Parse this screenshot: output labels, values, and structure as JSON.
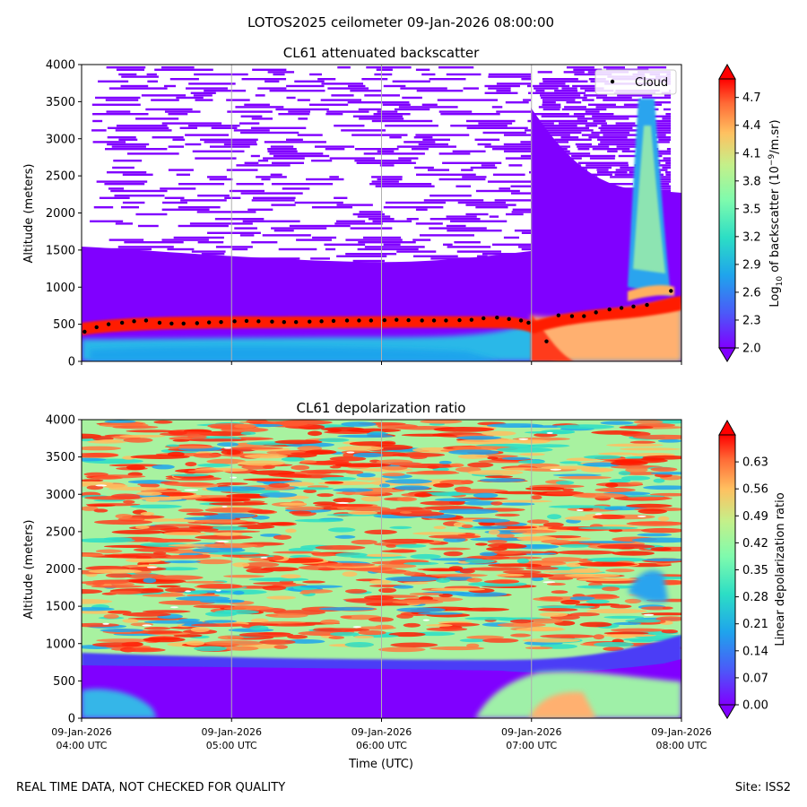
{
  "figure": {
    "suptitle": "LOTOS2025 ceilometer 09-Jan-2026 08:00:00",
    "footer_left": "REAL TIME DATA, NOT CHECKED FOR QUALITY",
    "footer_right": "Site: ISS2"
  },
  "chart_data": [
    {
      "type": "heatmap",
      "title": "CL61 attenuated backscatter",
      "ylabel": "Altitude (meters)",
      "xlabel": "",
      "xlim_hours": [
        4,
        8
      ],
      "ylim": [
        0,
        4000
      ],
      "yticks": [
        "0",
        "500",
        "1000",
        "1500",
        "2000",
        "2500",
        "3000",
        "3500",
        "4000"
      ],
      "colorbar": {
        "label_prefix": "Log",
        "label_sub": "10",
        "label_mid": " of backscatter (10",
        "label_sup": "−9",
        "label_suffix": "/m.sr)",
        "range": [
          2.0,
          4.9
        ],
        "ticks": [
          "2.0",
          "2.3",
          "2.6",
          "2.9",
          "3.2",
          "3.5",
          "3.8",
          "4.1",
          "4.4",
          "4.7"
        ]
      },
      "legend": {
        "label": "Cloud",
        "location": "top-right"
      },
      "cloud_base": {
        "name": "Cloud",
        "t_hours": [
          4.02,
          4.1,
          4.18,
          4.27,
          4.35,
          4.43,
          4.52,
          4.6,
          4.68,
          4.77,
          4.85,
          4.93,
          5.02,
          5.1,
          5.18,
          5.27,
          5.35,
          5.43,
          5.52,
          5.6,
          5.68,
          5.77,
          5.85,
          5.93,
          6.02,
          6.1,
          6.18,
          6.27,
          6.35,
          6.43,
          6.52,
          6.6,
          6.68,
          6.77,
          6.85,
          6.93,
          6.98,
          7.1,
          7.18,
          7.27,
          7.35,
          7.43,
          7.52,
          7.6,
          7.68,
          7.77,
          7.93
        ],
        "altitude_m": [
          400,
          460,
          500,
          520,
          540,
          550,
          520,
          510,
          510,
          515,
          525,
          530,
          540,
          545,
          540,
          535,
          530,
          530,
          535,
          540,
          545,
          550,
          550,
          550,
          555,
          560,
          555,
          550,
          550,
          550,
          555,
          560,
          580,
          590,
          570,
          550,
          520,
          270,
          620,
          610,
          610,
          660,
          700,
          720,
          740,
          760,
          950
        ]
      }
    },
    {
      "type": "heatmap",
      "title": "CL61 depolarization ratio",
      "ylabel": "Altitude (meters)",
      "xlabel": "Time (UTC)",
      "xlim_hours": [
        4,
        8
      ],
      "ylim": [
        0,
        4000
      ],
      "yticks": [
        "0",
        "500",
        "1000",
        "1500",
        "2000",
        "2500",
        "3000",
        "3500",
        "4000"
      ],
      "xticks": [
        {
          "date": "09-Jan-2026",
          "time": "04:00 UTC"
        },
        {
          "date": "09-Jan-2026",
          "time": "05:00 UTC"
        },
        {
          "date": "09-Jan-2026",
          "time": "06:00 UTC"
        },
        {
          "date": "09-Jan-2026",
          "time": "07:00 UTC"
        },
        {
          "date": "09-Jan-2026",
          "time": "08:00 UTC"
        }
      ],
      "colorbar": {
        "label": "Linear depolarization ratio",
        "range": [
          0.0,
          0.7
        ],
        "ticks": [
          "0.00",
          "0.07",
          "0.14",
          "0.21",
          "0.28",
          "0.35",
          "0.42",
          "0.49",
          "0.56",
          "0.63"
        ]
      }
    }
  ]
}
